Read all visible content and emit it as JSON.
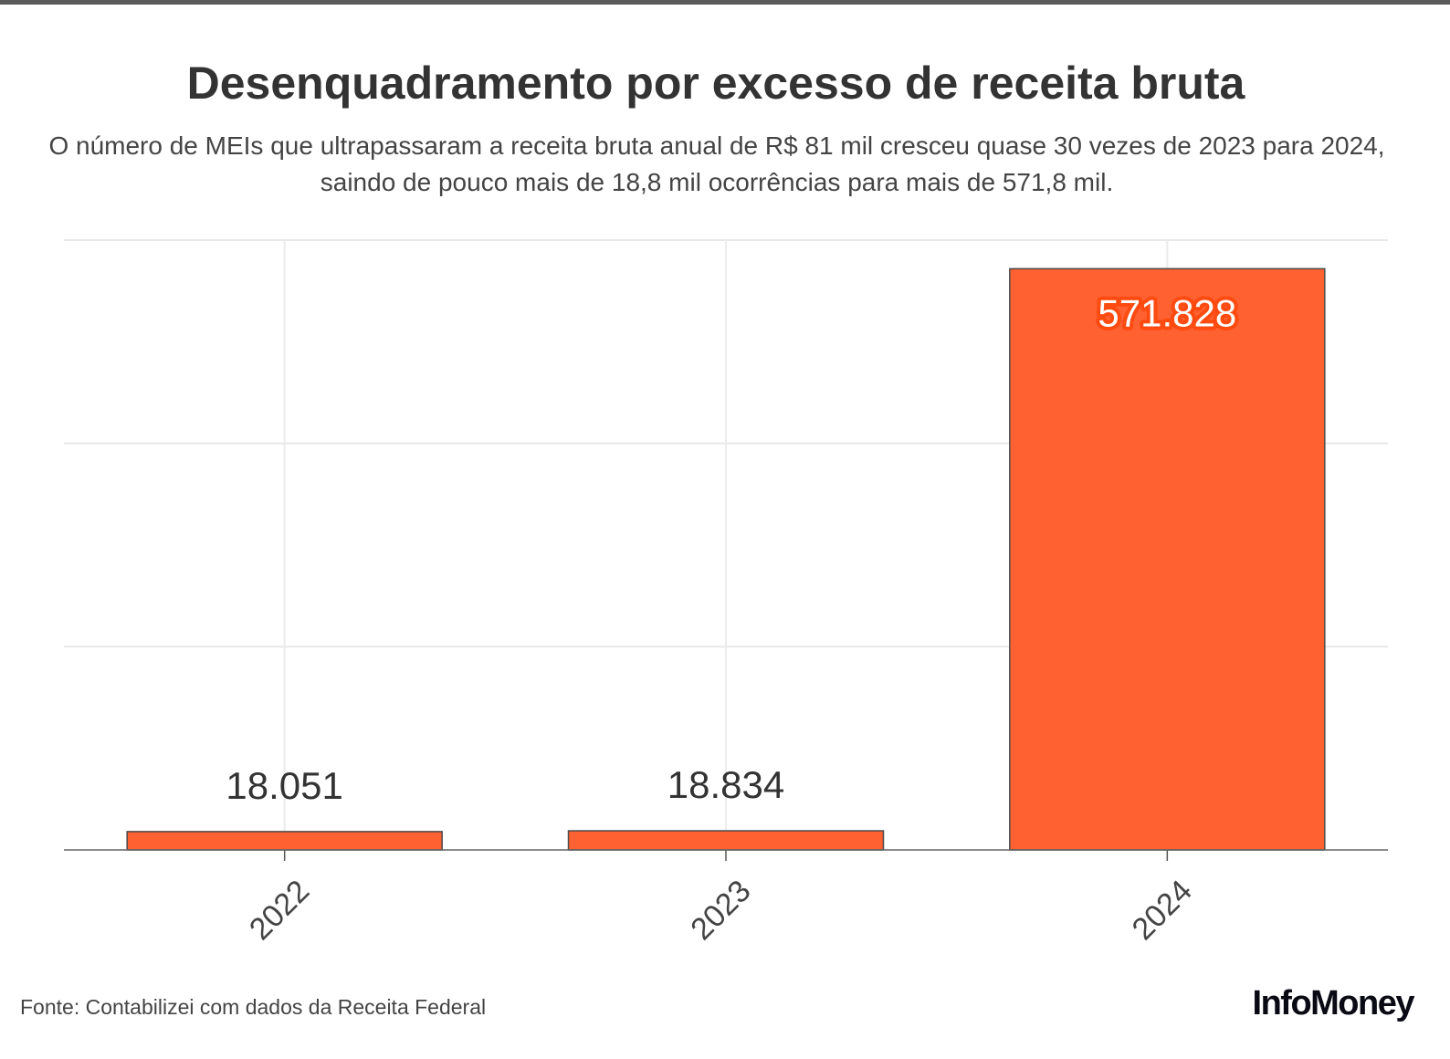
{
  "title": "Desenquadramento por excesso de receita bruta",
  "subtitle": "O número de MEIs que ultrapassaram a receita bruta anual de R$ 81 mil cresceu quase 30 vezes de 2023 para 2024, saindo de pouco mais de 18,8 mil ocorrências para mais de 571,8 mil.",
  "source": "Fonte: Contabilizei com dados da Receita Federal",
  "logo": "InfoMoney",
  "chart_data": {
    "type": "bar",
    "categories": [
      "2022",
      "2023",
      "2024"
    ],
    "values": [
      18051,
      18834,
      571828
    ],
    "labels": [
      "18.051",
      "18.834",
      "571.828"
    ],
    "ylim": [
      0,
      600000
    ],
    "y_gridlines": [
      0,
      200000,
      400000,
      600000
    ],
    "y_tick_labels_shown": false,
    "grid": true,
    "bar_color": "#ff6131",
    "bar_stroke": "#4a4a4a",
    "label_halo_color": "#ff4a10"
  }
}
